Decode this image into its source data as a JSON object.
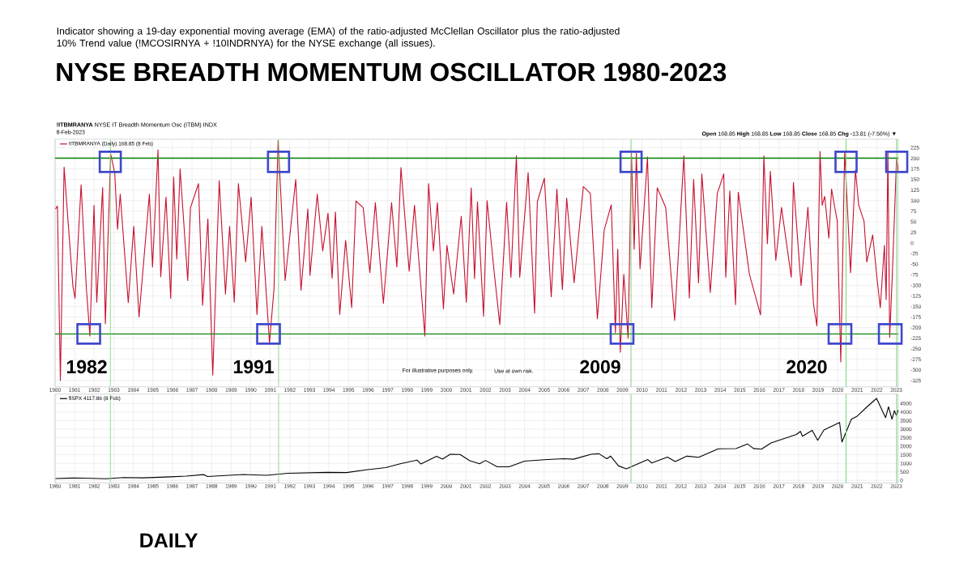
{
  "chart_data": [
    {
      "type": "line",
      "title": "NYSE BREADTH MOMENTUM OSCILLATOR 1980-2023",
      "annotations": [
        "Indicator showing a 19-day exponential moving average (EMA) of the ratio-adjusted McClellan Oscillator plus the ratio-adjusted 10% Trend value (!MCOSIRNYA + !10INDRNYA) for the NYSE exchange (all issues).",
        "**!ITBMRANYA** NYSE IT Breadth Momentum Osc (ITBM) INDX",
        "8-Feb-2023",
        "**Open** 168.85 **High** 168.85 **Low** 168.85 **Close** 168.85 **Chg** -13.81 (-7.56%) ▼",
        "1982",
        "1991",
        "2009",
        "2020",
        "For illustrative purposes only.",
        "Use at own risk."
      ],
      "x": [
        1980.02,
        1980.12,
        1980.27,
        1980.46,
        1980.7,
        1980.91,
        1981.02,
        1981.33,
        1981.6,
        1981.78,
        1981.99,
        1982.13,
        1982.43,
        1982.57,
        1982.84,
        1983.05,
        1983.19,
        1983.33,
        1983.74,
        1984.02,
        1984.29,
        1984.82,
        1984.98,
        1985.26,
        1985.4,
        1985.67,
        1985.91,
        1986.06,
        1986.22,
        1986.39,
        1986.78,
        1986.92,
        1987.33,
        1987.54,
        1987.81,
        1988.06,
        1988.39,
        1988.71,
        1988.92,
        1989.16,
        1989.37,
        1989.74,
        1990.02,
        1990.32,
        1990.57,
        1990.96,
        1991.19,
        1991.4,
        1991.76,
        1992.09,
        1992.3,
        1992.57,
        1992.92,
        1993.03,
        1993.4,
        1993.68,
        1993.95,
        1994.16,
        1994.33,
        1994.55,
        1994.85,
        1995.16,
        1995.38,
        1995.75,
        1996.09,
        1996.37,
        1996.78,
        1997.2,
        1997.47,
        1997.68,
        1998.1,
        1998.37,
        1998.9,
        1999.09,
        1999.34,
        1999.54,
        1999.85,
        2000.03,
        2000.37,
        2000.76,
        2001.02,
        2001.27,
        2001.44,
        2001.59,
        2001.9,
        2002.08,
        2002.44,
        2002.73,
        2003.08,
        2003.3,
        2003.58,
        2003.75,
        2004.18,
        2004.51,
        2004.65,
        2005.01,
        2005.36,
        2005.65,
        2005.93,
        2006.15,
        2006.53,
        2007.0,
        2007.36,
        2007.72,
        2008.07,
        2008.43,
        2008.64,
        2008.76,
        2008.89,
        2009.07,
        2009.29,
        2009.46,
        2009.6,
        2009.71,
        2009.9,
        2010.28,
        2010.5,
        2010.78,
        2011.21,
        2011.67,
        2012.14,
        2012.42,
        2012.64,
        2012.89,
        2013.06,
        2013.49,
        2013.85,
        2014.18,
        2014.28,
        2014.49,
        2014.78,
        2014.92,
        2015.49,
        2016.06,
        2016.23,
        2016.41,
        2016.56,
        2016.84,
        2017.13,
        2017.63,
        2017.74,
        2018.13,
        2018.48,
        2018.77,
        2018.94,
        2019.1,
        2019.21,
        2019.34,
        2019.55,
        2019.69,
        2019.98,
        2020.16,
        2020.36,
        2020.66,
        2020.91,
        2021.08,
        2021.35,
        2021.49,
        2021.79,
        2022.04,
        2022.18,
        2022.39,
        2022.48,
        2022.57,
        2022.66,
        2022.8,
        2023.01,
        2023.1
      ],
      "series": [
        {
          "name": "!ITBMRANYA (Daily) 168.85 (8 Feb)",
          "color": "#c8102e",
          "values": [
            80,
            87,
            -325,
            179,
            28,
            -102,
            -131,
            137,
            -108,
            -220,
            89,
            -140,
            131,
            -191,
            210,
            165,
            32,
            115,
            -141,
            39,
            -175,
            115,
            -57,
            220,
            -80,
            108,
            -131,
            156,
            -38,
            175,
            -89,
            83,
            140,
            -147,
            57,
            -312,
            147,
            -121,
            39,
            -140,
            140,
            -45,
            108,
            -169,
            39,
            -236,
            -108,
            242,
            -89,
            57,
            150,
            -112,
            80,
            -77,
            115,
            -19,
            70,
            -83,
            73,
            -169,
            6,
            -153,
            99,
            83,
            -70,
            95,
            -143,
            95,
            -57,
            178,
            -67,
            89,
            -220,
            140,
            -19,
            95,
            -156,
            -6,
            -121,
            63,
            -140,
            130,
            -84,
            97,
            -173,
            100,
            -67,
            -193,
            96,
            -81,
            206,
            -81,
            166,
            -166,
            97,
            153,
            -127,
            127,
            -110,
            106,
            -94,
            133,
            117,
            -179,
            31,
            90,
            -212,
            -15,
            -258,
            -74,
            -225,
            212,
            -15,
            212,
            -61,
            203,
            -153,
            130,
            84,
            -183,
            206,
            -130,
            150,
            -94,
            163,
            -117,
            117,
            163,
            -81,
            123,
            -146,
            120,
            -74,
            -170,
            206,
            -2,
            169,
            -41,
            84,
            -81,
            143,
            -101,
            84,
            -146,
            -196,
            216,
            89,
            110,
            11,
            127,
            51,
            -281,
            217,
            -70,
            172,
            89,
            51,
            -45,
            19,
            -96,
            -153,
            -6,
            -134,
            217,
            -223,
            -70,
            201,
            169
          ]
        }
      ],
      "xlim": [
        1980,
        2023.1
      ],
      "xticks": [
        1980,
        1981,
        1982,
        1983,
        1984,
        1985,
        1986,
        1987,
        1988,
        1989,
        1990,
        1991,
        1992,
        1993,
        1994,
        1995,
        1996,
        1997,
        1998,
        1999,
        2000,
        2001,
        2002,
        2003,
        2004,
        2005,
        2006,
        2007,
        2008,
        2009,
        2010,
        2011,
        2012,
        2013,
        2014,
        2015,
        2016,
        2017,
        2018,
        2019,
        2020,
        2021,
        2022,
        2023
      ],
      "ylim": [
        -340,
        245
      ],
      "yticks": [
        -325,
        -300,
        -275,
        -250,
        -225,
        -200,
        -175,
        -150,
        -125,
        -100,
        -75,
        -50,
        -25,
        0,
        25,
        50,
        75,
        100,
        125,
        150,
        175,
        200,
        225
      ],
      "ref_lines": [
        {
          "axis": "y",
          "value": 200,
          "color": "#1a8c1a"
        },
        {
          "axis": "y",
          "value": -215,
          "color": "#1a8c1a"
        },
        {
          "axis": "x",
          "value": 1982.82,
          "color": "#7fd87f"
        },
        {
          "axis": "x",
          "value": 1991.42,
          "color": "#7fd87f"
        },
        {
          "axis": "x",
          "value": 2009.44,
          "color": "#7fd87f"
        },
        {
          "axis": "x",
          "value": 2020.43,
          "color": "#7fd87f"
        },
        {
          "axis": "x",
          "value": 2023.02,
          "color": "#7fd87f"
        }
      ],
      "grid": true,
      "legend": "top left"
    },
    {
      "type": "line",
      "annotations": [
        "DAILY"
      ],
      "x": [
        1980.02,
        1980.9,
        1981.5,
        1982.6,
        1983.5,
        1984.5,
        1985.9,
        1986.7,
        1987.6,
        1987.8,
        1989.6,
        1990.8,
        1991.9,
        1993.9,
        1994.9,
        1995.9,
        1996.9,
        1997.6,
        1998.5,
        1998.7,
        1999.5,
        1999.8,
        2000.2,
        2000.7,
        2001.2,
        2001.7,
        2002.0,
        2002.6,
        2003.2,
        2004.0,
        2005.0,
        2006.0,
        2006.5,
        2007.4,
        2007.8,
        2008.2,
        2008.4,
        2008.8,
        2009.2,
        2010.3,
        2010.5,
        2011.3,
        2011.7,
        2012.3,
        2012.9,
        2013.9,
        2014.8,
        2015.4,
        2015.7,
        2016.1,
        2016.6,
        2017.9,
        2018.1,
        2018.2,
        2018.7,
        2018.98,
        2019.3,
        2020.1,
        2020.22,
        2020.7,
        2021.0,
        2021.5,
        2021.99,
        2022.45,
        2022.6,
        2022.78,
        2022.9,
        2023.0,
        2023.1
      ],
      "series": [
        {
          "name": "$SPX 4117.86 (8 Feb)",
          "color": "#000000",
          "values": [
            110,
            140,
            130,
            100,
            170,
            150,
            210,
            250,
            340,
            230,
            350,
            300,
            420,
            470,
            460,
            620,
            750,
            960,
            1190,
            960,
            1410,
            1250,
            1530,
            1520,
            1150,
            970,
            1170,
            800,
            800,
            1130,
            1210,
            1270,
            1240,
            1530,
            1560,
            1270,
            1420,
            850,
            680,
            1220,
            1020,
            1360,
            1100,
            1420,
            1350,
            1850,
            1860,
            2130,
            1870,
            1830,
            2190,
            2690,
            2870,
            2580,
            2930,
            2350,
            2950,
            3390,
            2240,
            3580,
            3760,
            4300,
            4800,
            3670,
            4310,
            3580,
            4080,
            3810,
            4120
          ]
        }
      ],
      "xlim": [
        1980,
        2023.1
      ],
      "xticks": [
        1980,
        1981,
        1982,
        1983,
        1984,
        1985,
        1986,
        1987,
        1988,
        1989,
        1990,
        1991,
        1992,
        1993,
        1994,
        1995,
        1996,
        1997,
        1998,
        1999,
        2000,
        2001,
        2002,
        2003,
        2004,
        2005,
        2006,
        2007,
        2008,
        2009,
        2010,
        2011,
        2012,
        2013,
        2014,
        2015,
        2016,
        2017,
        2018,
        2019,
        2020,
        2021,
        2022,
        2023
      ],
      "ylim": [
        -150,
        5050
      ],
      "yticks": [
        0,
        500,
        1000,
        1500,
        2000,
        2500,
        3000,
        3500,
        4000,
        4500
      ],
      "ref_lines": [
        {
          "axis": "x",
          "value": 1982.82,
          "color": "#7fd87f"
        },
        {
          "axis": "x",
          "value": 1991.42,
          "color": "#7fd87f"
        },
        {
          "axis": "x",
          "value": 2009.44,
          "color": "#7fd87f"
        },
        {
          "axis": "x",
          "value": 2020.43,
          "color": "#7fd87f"
        },
        {
          "axis": "x",
          "value": 2023.02,
          "color": "#7fd87f"
        }
      ],
      "grid": true,
      "legend": "top left"
    }
  ]
}
